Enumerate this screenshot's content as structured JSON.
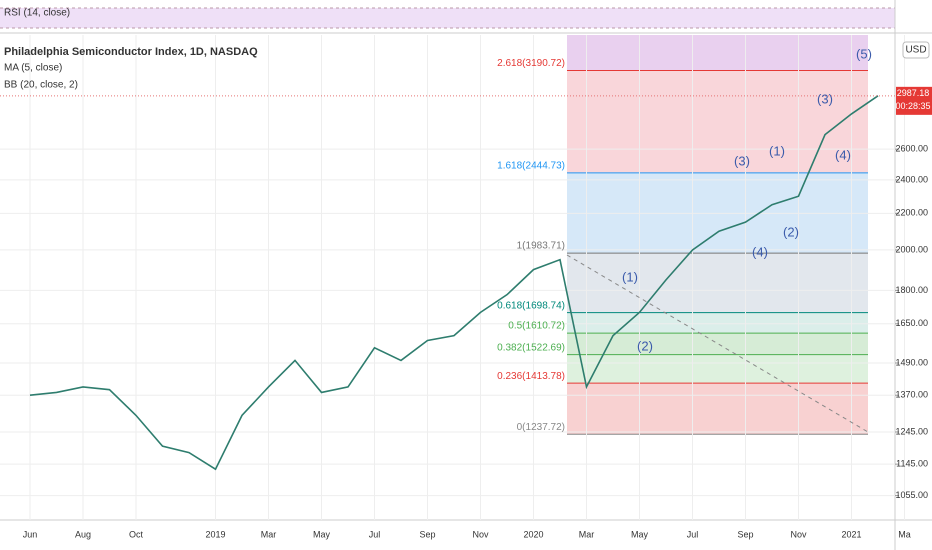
{
  "rsi_label": "RSI (14, close)",
  "currency": "USD",
  "countdown": "00:28:35",
  "chart_data": {
    "type": "line",
    "title": "Philadelphia Semiconductor Index, 1D, NASDAQ",
    "indicators": [
      "MA (5, close)",
      "BB (20, close, 2)"
    ],
    "categories": [
      "Jun",
      null,
      "Aug",
      null,
      "Oct",
      null,
      null,
      "2019",
      null,
      "Mar",
      null,
      "May",
      null,
      "Jul",
      null,
      "Sep",
      null,
      "Nov",
      null,
      "2020",
      null,
      "Mar",
      null,
      "May",
      null,
      "Jul",
      null,
      "Sep",
      null,
      "Nov",
      null,
      "2021",
      null,
      "Ma"
    ],
    "values": [
      1370,
      1380,
      1400,
      1390,
      1300,
      1200,
      1180,
      1130,
      1300,
      1400,
      1500,
      1380,
      1400,
      1550,
      1500,
      1580,
      1600,
      1700,
      1780,
      1900,
      1950,
      1400,
      1600,
      1700,
      1850,
      2000,
      2100,
      2150,
      2250,
      2300,
      2700,
      2850,
      2987.18,
      null
    ],
    "color": "#2e7d6e",
    "log_scale": true,
    "ylim": [
      990,
      3500
    ],
    "yticks": [
      {
        "value": 1055,
        "label": "1055.00"
      },
      {
        "value": 1145,
        "label": "1145.00"
      },
      {
        "value": 1245,
        "label": "1245.00"
      },
      {
        "value": 1370,
        "label": "1370.00"
      },
      {
        "value": 1490,
        "label": "1490.00"
      },
      {
        "value": 1650,
        "label": "1650.00"
      },
      {
        "value": 1800,
        "label": "1800.00"
      },
      {
        "value": 2000,
        "label": "2000.00"
      },
      {
        "value": 2200,
        "label": "2200.00"
      },
      {
        "value": 2400,
        "label": "2400.00"
      },
      {
        "value": 2600,
        "label": "2600.00"
      }
    ],
    "grid": true,
    "fib_levels": [
      {
        "label": "0(1237.72)",
        "value": 1237.72,
        "color": "#888888",
        "fill": "#f7c9c9"
      },
      {
        "label": "0.236(1413.78)",
        "value": 1413.78,
        "color": "#e53935",
        "fill": "#d8eed8"
      },
      {
        "label": "0.382(1522.69)",
        "value": 1522.69,
        "color": "#4caf50",
        "fill": "#cfe9cf"
      },
      {
        "label": "0.5(1610.72)",
        "value": 1610.72,
        "color": "#4caf50",
        "fill": "#d5ebe6"
      },
      {
        "label": "0.618(1698.74)",
        "value": 1698.74,
        "color": "#00897b",
        "fill": "#dde3ea"
      },
      {
        "label": "1(1983.71)",
        "value": 1983.71,
        "color": "#777777",
        "fill": "#cfe4f7"
      },
      {
        "label": "1.618(2444.73)",
        "value": 2444.73,
        "color": "#2196f3",
        "fill": "#f8cfd3"
      },
      {
        "label": "2.618(3190.72)",
        "value": 3190.72,
        "color": "#e53935",
        "fill": "#e5c8ec"
      }
    ],
    "waves": [
      "(1)",
      "(2)",
      "(3)",
      "(4)",
      "(1)",
      "(2)",
      "(3)",
      "(4)",
      "(5)"
    ]
  }
}
